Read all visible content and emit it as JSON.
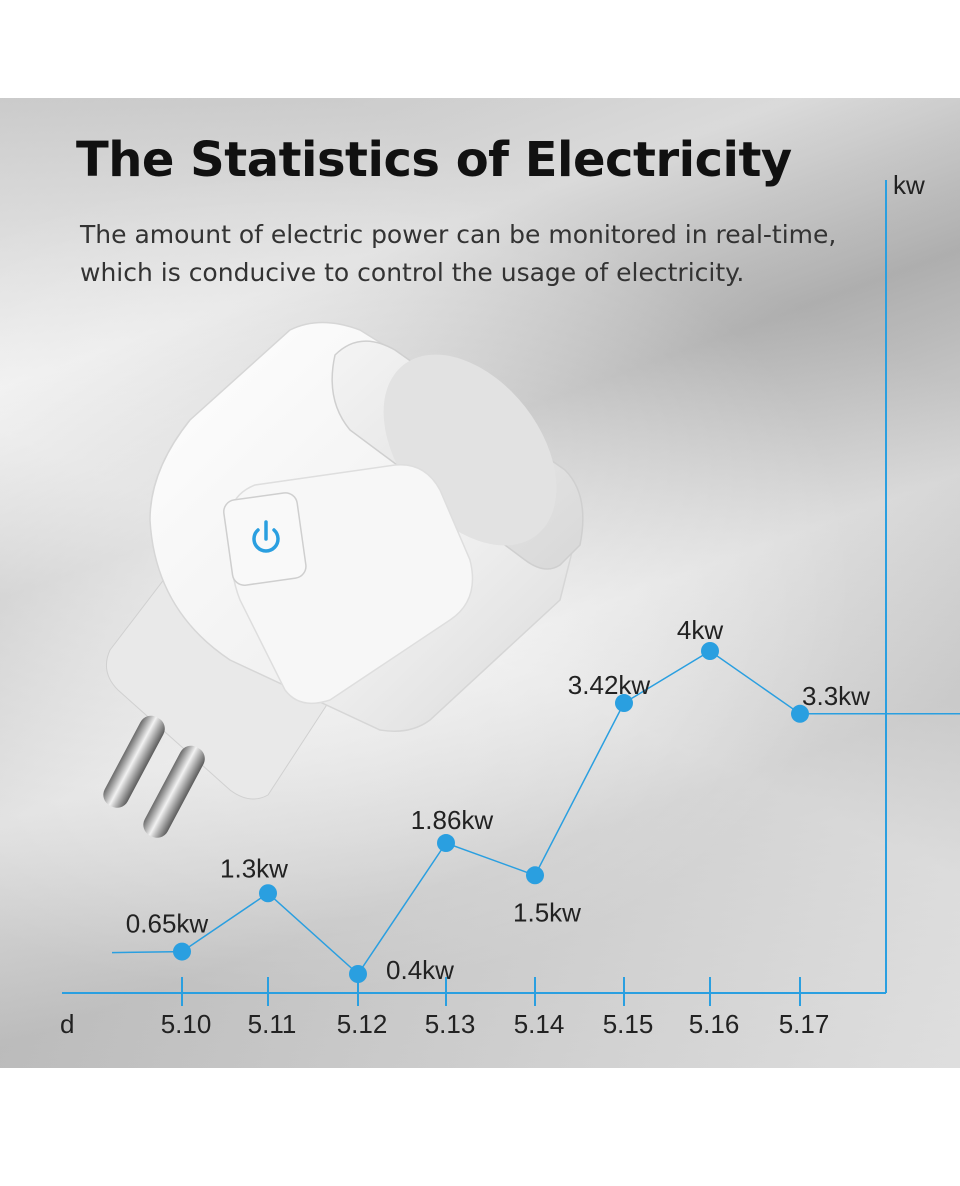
{
  "header": {
    "title": "The Statistics of Electricity",
    "subtitle_line1": "The amount of electric power can be monitored in real-time,",
    "subtitle_line2": "which is conducive to control the usage of electricity."
  },
  "product": {
    "power_button_icon": "power-icon",
    "accent_color": "#2a9fe0"
  },
  "chart_data": {
    "type": "line",
    "xlabel": "d",
    "ylabel": "kw",
    "categories": [
      "5.10",
      "5.11",
      "5.12",
      "5.13",
      "5.14",
      "5.15",
      "5.16",
      "5.17"
    ],
    "values": [
      0.65,
      1.3,
      0.4,
      1.86,
      1.5,
      3.42,
      4,
      3.3
    ],
    "data_labels": [
      "0.65kw",
      "1.3kw",
      "0.4kw",
      "1.86kw",
      "1.5kw",
      "3.42kw",
      "4kw",
      "3.3kw"
    ],
    "grid": false,
    "line_color": "#2a9fe0"
  }
}
